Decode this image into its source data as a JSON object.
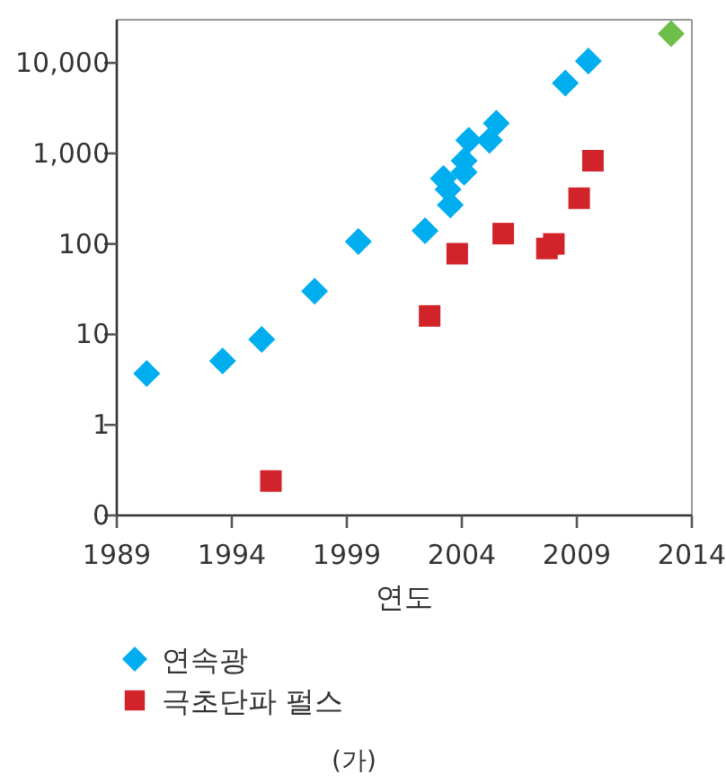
{
  "chart_data": {
    "type": "scatter",
    "xlabel": "연도",
    "log": "y",
    "grid": false,
    "legend": "bottom",
    "xlim": [
      1989,
      2014
    ],
    "ylim": [
      0.1,
      30000
    ],
    "xticks": [
      1989,
      1994,
      1999,
      2004,
      2009,
      2014
    ],
    "yticks": [
      {
        "value": 0.1,
        "label": "0"
      },
      1,
      10,
      100,
      {
        "value": 1000,
        "label": "1,000"
      },
      {
        "value": 10000,
        "label": "10,000"
      }
    ],
    "series": [
      {
        "name": "연속광",
        "color": "#00aeef",
        "marker": "diamond",
        "x": [
          1990.3,
          1993.6,
          1995.3,
          1997.6,
          1999.5,
          2002.4,
          2003.5,
          2003.4,
          2003.2,
          2004.1,
          2004.1,
          2004.3,
          2005.2,
          2005.5,
          2008.5,
          2009.5
        ],
        "values": [
          3.7,
          5.1,
          8.8,
          30,
          106,
          140,
          270,
          400,
          530,
          620,
          830,
          1400,
          1400,
          2150,
          6000,
          10500
        ]
      },
      {
        "name": "극초단파 펄스",
        "color": "#d2232a",
        "marker": "square",
        "x": [
          1995.7,
          2002.6,
          2003.8,
          2005.8,
          2007.7,
          2008.0,
          2009.1,
          2009.7
        ],
        "values": [
          0.24,
          16,
          78,
          130,
          89,
          100,
          320,
          830
        ]
      },
      {
        "color": "#6dbe4b",
        "marker": "diamond",
        "x": [
          2013.1
        ],
        "values": [
          21000
        ]
      }
    ],
    "annotations": [
      "(가)"
    ]
  }
}
